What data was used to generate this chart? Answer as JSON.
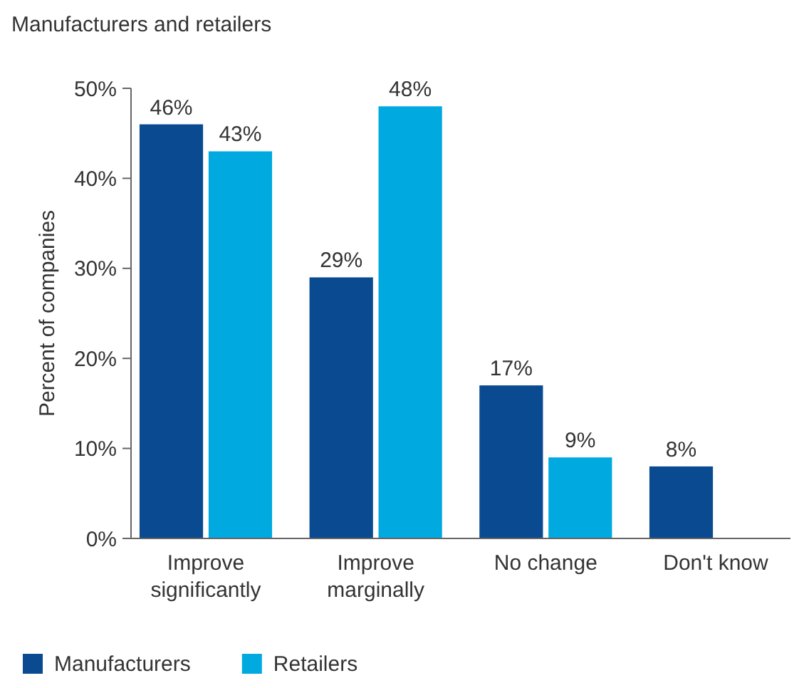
{
  "chart_data": {
    "type": "bar",
    "title": "Manufacturers and retailers",
    "ylabel": "Percent of companies",
    "categories": [
      "Improve significantly",
      "Improve marginally",
      "No change",
      "Don't know"
    ],
    "series": [
      {
        "name": "Manufacturers",
        "color": "#0a4a91",
        "values": [
          46,
          29,
          17,
          8
        ],
        "value_labels": [
          "46%",
          "29%",
          "17%",
          "8%"
        ]
      },
      {
        "name": "Retailers",
        "color": "#00a9e0",
        "values": [
          43,
          48,
          9,
          null
        ],
        "value_labels": [
          "43%",
          "48%",
          "9%",
          null
        ]
      }
    ],
    "ylim": [
      0,
      50
    ],
    "yticks": [
      {
        "value": 0,
        "label": "0%"
      },
      {
        "value": 10,
        "label": "10%"
      },
      {
        "value": 20,
        "label": "20%"
      },
      {
        "value": 30,
        "label": "30%"
      },
      {
        "value": 40,
        "label": "40%"
      },
      {
        "value": 50,
        "label": "50%"
      }
    ],
    "grid": false,
    "legend": "bottom left"
  }
}
